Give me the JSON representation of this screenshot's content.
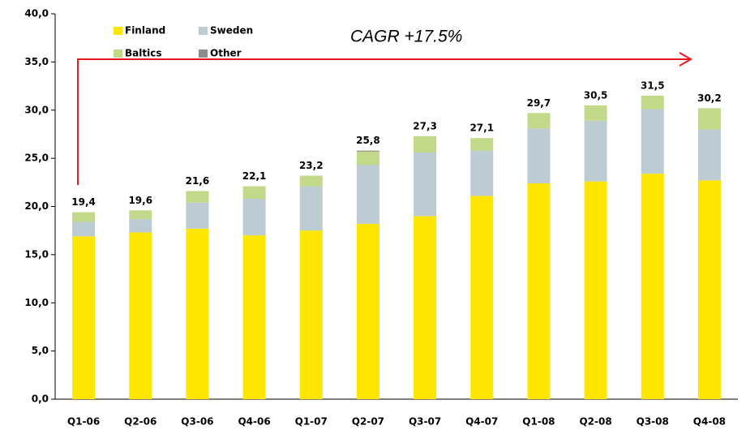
{
  "chart_data": {
    "type": "stacked_bar",
    "annotation": "CAGR +17.5%",
    "categories": [
      "Q1-06",
      "Q2-06",
      "Q3-06",
      "Q4-06",
      "Q1-07",
      "Q2-07",
      "Q3-07",
      "Q4-07",
      "Q1-08",
      "Q2-08",
      "Q3-08",
      "Q4-08"
    ],
    "series": [
      {
        "name": "Finland",
        "color": "#ffe600",
        "values": [
          16.9,
          17.3,
          17.7,
          17.0,
          17.5,
          18.2,
          19.0,
          21.1,
          22.4,
          22.6,
          23.4,
          22.7
        ]
      },
      {
        "name": "Sweden",
        "color": "#bdcbd3",
        "values": [
          1.5,
          1.4,
          2.7,
          3.8,
          4.6,
          6.1,
          6.6,
          4.7,
          5.7,
          6.3,
          6.7,
          5.3
        ]
      },
      {
        "name": "Baltics",
        "color": "#c3d98a",
        "values": [
          1.0,
          0.9,
          1.2,
          1.3,
          1.1,
          1.4,
          1.7,
          1.3,
          1.6,
          1.6,
          1.4,
          2.2
        ]
      },
      {
        "name": "Other",
        "color": "#8c8c8c",
        "values": [
          0,
          0,
          0,
          0,
          0,
          0.1,
          0,
          0,
          0,
          0,
          0,
          0
        ]
      }
    ],
    "totals": [
      19.4,
      19.6,
      21.6,
      22.1,
      23.2,
      25.8,
      27.3,
      27.1,
      29.7,
      30.5,
      31.5,
      30.2
    ],
    "total_labels": [
      "19,4",
      "19,6",
      "21,6",
      "22,1",
      "23,2",
      "25,8",
      "27,3",
      "27,1",
      "29,7",
      "30,5",
      "31,5",
      "30,2"
    ],
    "ylim": [
      0,
      40
    ],
    "yticks": [
      {
        "value": 0,
        "label": "0,0"
      },
      {
        "value": 5,
        "label": "5,0"
      },
      {
        "value": 10,
        "label": "10,0"
      },
      {
        "value": 15,
        "label": "15,0"
      },
      {
        "value": 20,
        "label": "20,0"
      },
      {
        "value": 25,
        "label": "25,0"
      },
      {
        "value": 30,
        "label": "30,0"
      },
      {
        "value": 35,
        "label": "35,0"
      },
      {
        "value": 40,
        "label": "40,0"
      }
    ],
    "grid": false
  }
}
